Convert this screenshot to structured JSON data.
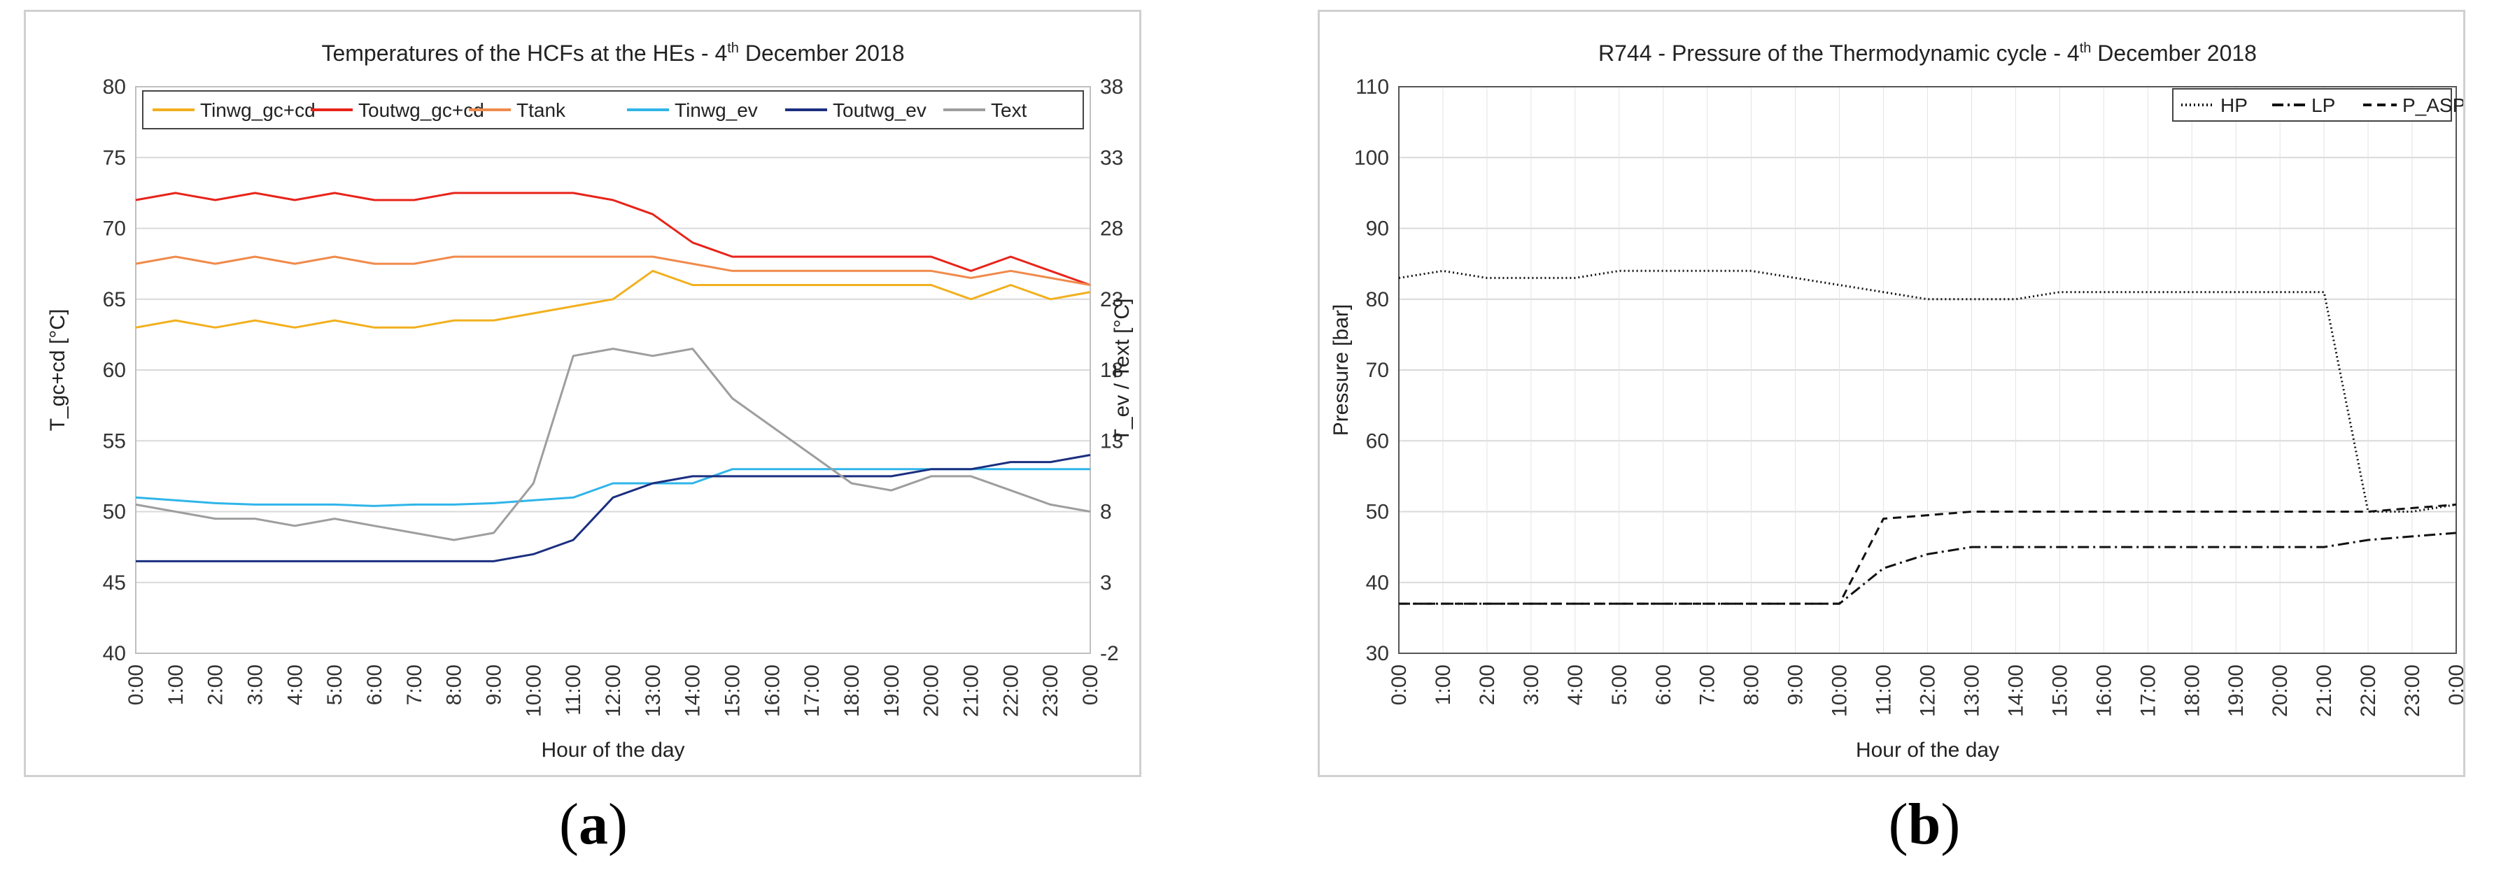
{
  "chart_data": [
    {
      "type": "line",
      "title": "Temperatures of the HCFs at the HEs - 4",
      "title_sup": "th",
      "title_tail": " December 2018",
      "xlabel": "Hour of the day",
      "ylabel": "T_gc+cd [°C]",
      "y2label": "T_ev / Text [°C]",
      "ylim": [
        40,
        80
      ],
      "y2lim": [
        -2,
        38
      ],
      "yticks": [
        40,
        45,
        50,
        55,
        60,
        65,
        70,
        75,
        80
      ],
      "y2ticks": [
        -2,
        3,
        8,
        13,
        18,
        23,
        28,
        33,
        38
      ],
      "x_tick_labels": [
        "0:00",
        "1:00",
        "2:00",
        "3:00",
        "4:00",
        "5:00",
        "6:00",
        "7:00",
        "8:00",
        "9:00",
        "10:00",
        "11:00",
        "12:00",
        "13:00",
        "14:00",
        "15:00",
        "16:00",
        "17:00",
        "18:00",
        "19:00",
        "20:00",
        "21:00",
        "22:00",
        "23:00",
        "0:00"
      ],
      "grid": true,
      "legend_position": "top",
      "series": [
        {
          "name": "Tinwg_gc+cd",
          "axis": "left",
          "color": "#f2b01e",
          "x": [
            0,
            1,
            2,
            3,
            4,
            5,
            6,
            7,
            8,
            9,
            10,
            11,
            12,
            13,
            14,
            15,
            16,
            17,
            18,
            19,
            20,
            21,
            22,
            23,
            24
          ],
          "values": [
            63,
            63.5,
            63,
            63.5,
            63,
            63.5,
            63,
            63,
            63.5,
            63.5,
            64,
            64.5,
            65,
            67,
            66,
            66,
            66,
            66,
            66,
            66,
            66,
            65,
            66,
            65,
            65.5
          ]
        },
        {
          "name": "Toutwg_gc+cd",
          "axis": "left",
          "color": "#e8231a",
          "x": [
            0,
            1,
            2,
            3,
            4,
            5,
            6,
            7,
            8,
            9,
            10,
            11,
            12,
            13,
            14,
            15,
            16,
            17,
            18,
            19,
            20,
            21,
            22,
            23,
            24
          ],
          "values": [
            72,
            72.5,
            72,
            72.5,
            72,
            72.5,
            72,
            72,
            72.5,
            72.5,
            72.5,
            72.5,
            72,
            71,
            69,
            68,
            68,
            68,
            68,
            68,
            68,
            67,
            68,
            67,
            66
          ]
        },
        {
          "name": "Ttank",
          "axis": "left",
          "color": "#f08a4b",
          "x": [
            0,
            1,
            2,
            3,
            4,
            5,
            6,
            7,
            8,
            9,
            10,
            11,
            12,
            13,
            14,
            15,
            16,
            17,
            18,
            19,
            20,
            21,
            22,
            23,
            24
          ],
          "values": [
            67.5,
            68,
            67.5,
            68,
            67.5,
            68,
            67.5,
            67.5,
            68,
            68,
            68,
            68,
            68,
            68,
            67.5,
            67,
            67,
            67,
            67,
            67,
            67,
            66.5,
            67,
            66.5,
            66
          ]
        },
        {
          "name": "Tinwg_ev",
          "axis": "right",
          "color": "#2fb5e9",
          "x": [
            0,
            1,
            2,
            3,
            4,
            5,
            6,
            7,
            8,
            9,
            10,
            11,
            12,
            13,
            14,
            15,
            16,
            17,
            18,
            19,
            20,
            21,
            22,
            23,
            24
          ],
          "values": [
            9,
            8.8,
            8.6,
            8.5,
            8.5,
            8.5,
            8.4,
            8.5,
            8.5,
            8.6,
            8.8,
            9,
            10,
            10,
            10,
            11,
            11,
            11,
            11,
            11,
            11,
            11,
            11,
            11,
            11
          ]
        },
        {
          "name": "Toutwg_ev",
          "axis": "right",
          "color": "#1b2f80",
          "x": [
            0,
            1,
            2,
            3,
            4,
            5,
            6,
            7,
            8,
            9,
            10,
            11,
            12,
            13,
            14,
            15,
            16,
            17,
            18,
            19,
            20,
            21,
            22,
            23,
            24
          ],
          "values": [
            4.5,
            4.5,
            4.5,
            4.5,
            4.5,
            4.5,
            4.5,
            4.5,
            4.5,
            4.5,
            5,
            6,
            9,
            10,
            10.5,
            10.5,
            10.5,
            10.5,
            10.5,
            10.5,
            11,
            11,
            11.5,
            11.5,
            12
          ]
        },
        {
          "name": "Text",
          "axis": "right",
          "color": "#9e9e9e",
          "x": [
            0,
            1,
            2,
            3,
            4,
            5,
            6,
            7,
            8,
            9,
            10,
            11,
            12,
            13,
            14,
            15,
            16,
            17,
            18,
            19,
            20,
            21,
            22,
            23,
            24
          ],
          "values": [
            8.5,
            8,
            7.5,
            7.5,
            7,
            7.5,
            7,
            6.5,
            6,
            6.5,
            10,
            19,
            19.5,
            19,
            19.5,
            16,
            14,
            12,
            10,
            9.5,
            10.5,
            10.5,
            9.5,
            8.5,
            8
          ]
        }
      ]
    },
    {
      "type": "line",
      "title": "R744 - Pressure of the Thermodynamic cycle - 4",
      "title_sup": "th",
      "title_tail": " December 2018",
      "xlabel": "Hour of the day",
      "ylabel": "Pressure [bar]",
      "ylim": [
        30,
        110
      ],
      "yticks": [
        30,
        40,
        50,
        60,
        70,
        80,
        90,
        100,
        110
      ],
      "x_tick_labels": [
        "0:00",
        "1:00",
        "2:00",
        "3:00",
        "4:00",
        "5:00",
        "6:00",
        "7:00",
        "8:00",
        "9:00",
        "10:00",
        "11:00",
        "12:00",
        "13:00",
        "14:00",
        "15:00",
        "16:00",
        "17:00",
        "18:00",
        "19:00",
        "20:00",
        "21:00",
        "22:00",
        "23:00",
        "0:00"
      ],
      "grid": true,
      "legend_position": "top-right",
      "series": [
        {
          "name": "HP",
          "style": "dotted",
          "x": [
            0,
            1,
            2,
            3,
            4,
            5,
            6,
            7,
            8,
            9,
            10,
            11,
            12,
            13,
            14,
            15,
            16,
            17,
            18,
            19,
            20,
            21,
            22,
            23,
            24
          ],
          "values": [
            83,
            84,
            83,
            83,
            83,
            84,
            84,
            84,
            84,
            83,
            82,
            81,
            80,
            80,
            80,
            81,
            81,
            81,
            81,
            81,
            81,
            81,
            50,
            50,
            51
          ]
        },
        {
          "name": "LP",
          "style": "dash-dot",
          "x": [
            0,
            1,
            2,
            3,
            4,
            5,
            6,
            7,
            8,
            9,
            10,
            11,
            12,
            13,
            14,
            15,
            16,
            17,
            18,
            19,
            20,
            21,
            22,
            23,
            24
          ],
          "values": [
            37,
            37,
            37,
            37,
            37,
            37,
            37,
            37,
            37,
            37,
            37,
            42,
            44,
            45,
            45,
            45,
            45,
            45,
            45,
            45,
            45,
            45,
            46,
            46.5,
            47
          ]
        },
        {
          "name": "P_ASP",
          "style": "dashed",
          "x": [
            0,
            1,
            2,
            3,
            4,
            5,
            6,
            7,
            8,
            9,
            10,
            11,
            12,
            13,
            14,
            15,
            16,
            17,
            18,
            19,
            20,
            21,
            22,
            23,
            24
          ],
          "values": [
            37,
            37,
            37,
            37,
            37,
            37,
            37,
            37,
            37,
            37,
            37,
            49,
            49.5,
            50,
            50,
            50,
            50,
            50,
            50,
            50,
            50,
            50,
            50,
            50.5,
            51
          ]
        }
      ]
    }
  ],
  "panel_labels": {
    "a": "a",
    "b": "b"
  }
}
